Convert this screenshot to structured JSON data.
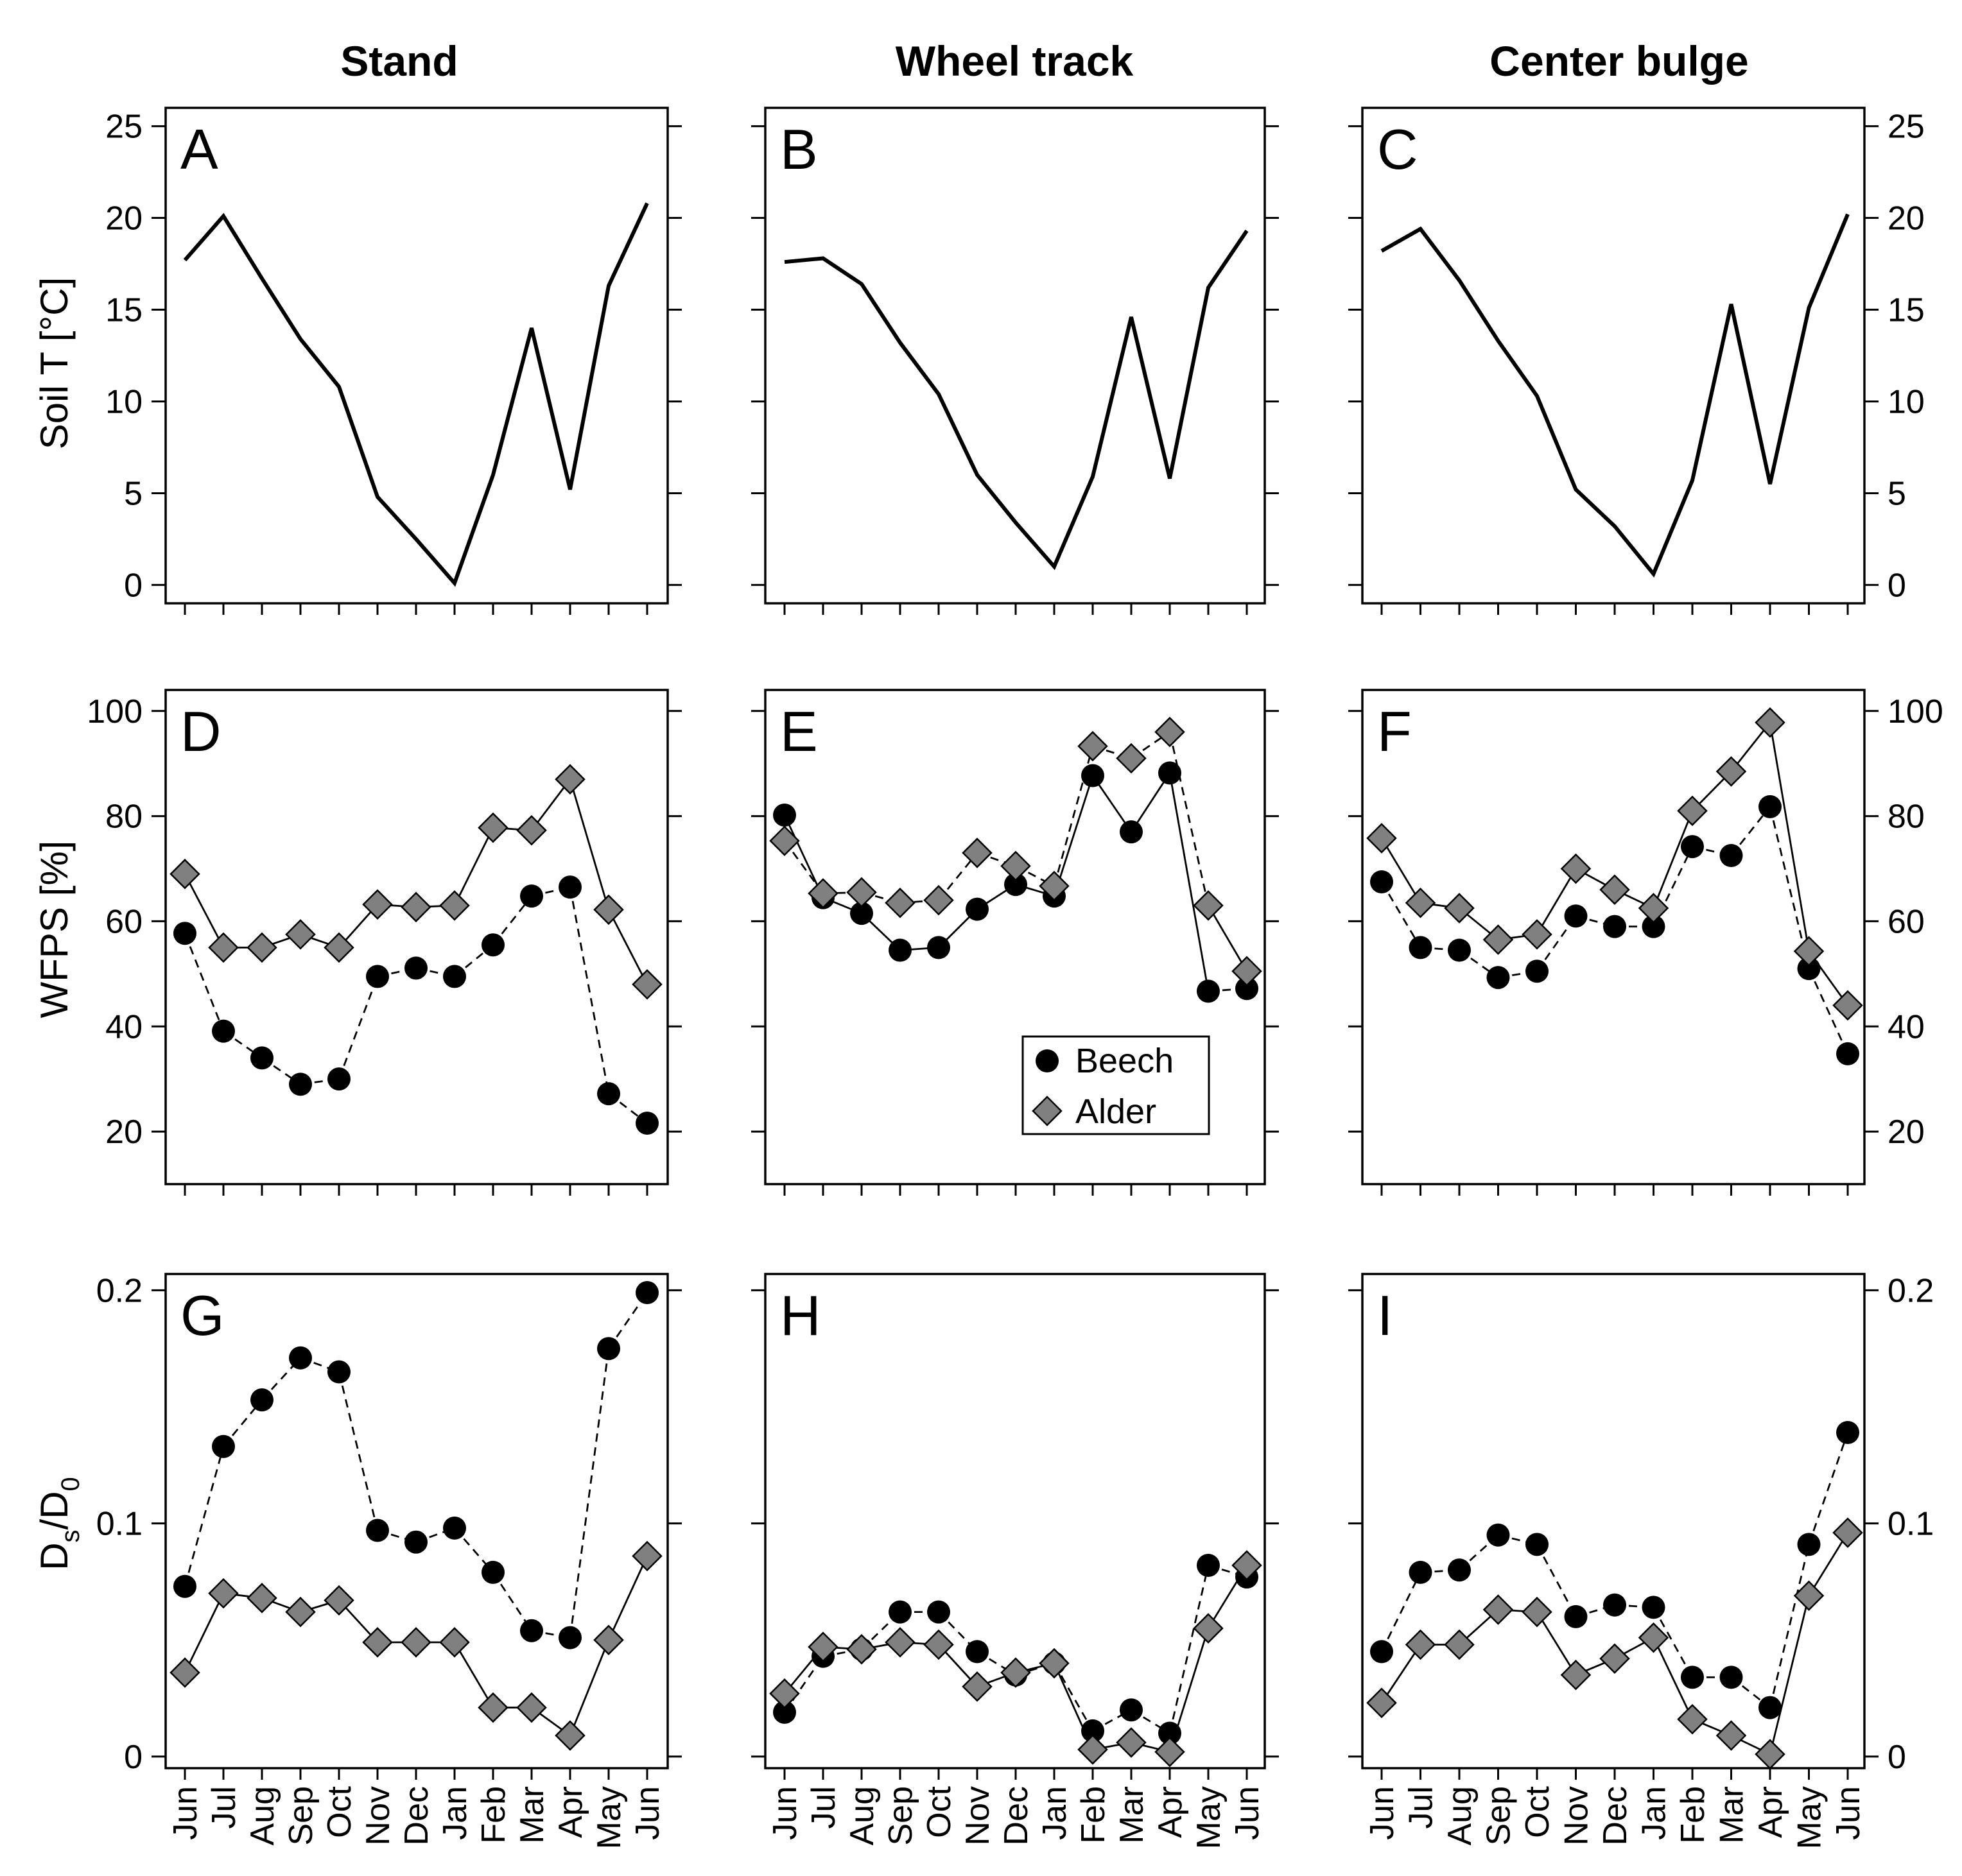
{
  "figure": {
    "column_titles": [
      "Stand",
      "Wheel track",
      "Center bulge"
    ],
    "months": [
      "Jun",
      "Jul",
      "Aug",
      "Sep",
      "Oct",
      "Nov",
      "Dec",
      "Jan",
      "Feb",
      "Mar",
      "Apr",
      "May",
      "Jun"
    ],
    "legend": {
      "beech": "Beech",
      "alder": "Alder"
    },
    "colors": {
      "line": "#000000",
      "beech_marker": "#000000",
      "alder_marker": "#808080",
      "axis": "#000000"
    }
  },
  "rows": [
    {
      "ylabel": "Soil T [°C]",
      "ylabel_main": "Soil T [°C]",
      "ylim": [
        -1,
        26
      ],
      "ticks": [
        0,
        5,
        10,
        15,
        20,
        25
      ],
      "tick_labels": [
        "0",
        "5",
        "10",
        "15",
        "20",
        "25"
      ]
    },
    {
      "ylabel": "WFPS [%]",
      "ylabel_main": "WFPS [%]",
      "ylim": [
        10,
        104
      ],
      "ticks": [
        20,
        40,
        60,
        80,
        100
      ],
      "tick_labels": [
        "20",
        "40",
        "60",
        "80",
        "100"
      ]
    },
    {
      "ylabel": "Ds/D0",
      "ylabel_main": "D",
      "ylabel_sub_s": "s",
      "ylabel_slash": "/D",
      "ylabel_sub_0": "0",
      "ylim": [
        -0.005,
        0.207
      ],
      "ticks": [
        0,
        0.1,
        0.2
      ],
      "tick_labels": [
        "0",
        "0.1",
        "0.2"
      ]
    }
  ],
  "chart_data": [
    {
      "panel": "A",
      "type": "line",
      "column": "Stand",
      "ylabel": "Soil T [°C]",
      "ylim": [
        -1,
        26
      ],
      "categories": [
        "Jun",
        "Jul",
        "Aug",
        "Sep",
        "Oct",
        "Nov",
        "Dec",
        "Jan",
        "Feb",
        "Mar",
        "Apr",
        "May",
        "Jun"
      ],
      "series": [
        {
          "name": "Soil T",
          "values": [
            17.7,
            20.1,
            16.7,
            13.4,
            10.8,
            4.8,
            2.5,
            0.1,
            6.0,
            14.0,
            5.2,
            16.3,
            20.8
          ]
        }
      ]
    },
    {
      "panel": "B",
      "type": "line",
      "column": "Wheel track",
      "ylabel": "Soil T [°C]",
      "ylim": [
        -1,
        26
      ],
      "categories": [
        "Jun",
        "Jul",
        "Aug",
        "Sep",
        "Oct",
        "Nov",
        "Dec",
        "Jan",
        "Feb",
        "Mar",
        "Apr",
        "May",
        "Jun"
      ],
      "series": [
        {
          "name": "Soil T",
          "values": [
            17.6,
            17.8,
            16.4,
            13.2,
            10.4,
            6.0,
            3.4,
            1.0,
            5.9,
            14.6,
            5.8,
            16.2,
            19.3
          ]
        }
      ]
    },
    {
      "panel": "C",
      "type": "line",
      "column": "Center bulge",
      "ylabel": "Soil T [°C]",
      "ylim": [
        -1,
        26
      ],
      "categories": [
        "Jun",
        "Jul",
        "Aug",
        "Sep",
        "Oct",
        "Nov",
        "Dec",
        "Jan",
        "Feb",
        "Mar",
        "Apr",
        "May",
        "Jun"
      ],
      "series": [
        {
          "name": "Soil T",
          "values": [
            18.2,
            19.4,
            16.6,
            13.3,
            10.3,
            5.2,
            3.2,
            0.6,
            5.7,
            15.3,
            5.5,
            15.1,
            20.2
          ]
        }
      ]
    },
    {
      "panel": "D",
      "type": "line",
      "column": "Stand",
      "ylabel": "WFPS [%]",
      "ylim": [
        10,
        104
      ],
      "categories": [
        "Jun",
        "Jul",
        "Aug",
        "Sep",
        "Oct",
        "Nov",
        "Dec",
        "Jan",
        "Feb",
        "Mar",
        "Apr",
        "May",
        "Jun"
      ],
      "series": [
        {
          "name": "Beech",
          "values": [
            57.7,
            39.1,
            34.0,
            29.0,
            30.0,
            49.5,
            51.1,
            49.5,
            55.5,
            64.8,
            66.5,
            27.2,
            21.6
          ],
          "marker": "circle",
          "dash": [
            true,
            true,
            true,
            true,
            true,
            true,
            true,
            true,
            true,
            true,
            true,
            true
          ]
        },
        {
          "name": "Alder",
          "values": [
            69.0,
            55.0,
            55.0,
            57.5,
            55.0,
            63.2,
            62.7,
            63.0,
            77.8,
            77.3,
            87.0,
            62.2,
            48.0
          ],
          "marker": "diamond",
          "dash": [
            false,
            false,
            false,
            false,
            false,
            false,
            false,
            false,
            false,
            false,
            false,
            false
          ]
        }
      ]
    },
    {
      "panel": "E",
      "type": "line",
      "column": "Wheel track",
      "ylabel": "WFPS [%]",
      "ylim": [
        10,
        104
      ],
      "categories": [
        "Jun",
        "Jul",
        "Aug",
        "Sep",
        "Oct",
        "Nov",
        "Dec",
        "Jan",
        "Feb",
        "Mar",
        "Apr",
        "May",
        "Jun"
      ],
      "series": [
        {
          "name": "Beech",
          "values": [
            80.2,
            64.5,
            61.5,
            54.5,
            55.0,
            62.3,
            67.0,
            64.8,
            87.7,
            77.0,
            88.2,
            46.7,
            47.2
          ],
          "marker": "circle",
          "dash": [
            false,
            false,
            false,
            false,
            false,
            false,
            false,
            false,
            false,
            false,
            false,
            true
          ]
        },
        {
          "name": "Alder",
          "values": [
            75.3,
            65.3,
            65.5,
            63.5,
            64.0,
            73.0,
            70.5,
            66.7,
            93.3,
            91.0,
            96.0,
            63.0,
            50.5
          ],
          "marker": "diamond",
          "dash": [
            true,
            true,
            true,
            true,
            true,
            true,
            true,
            true,
            true,
            true,
            true,
            false
          ]
        }
      ]
    },
    {
      "panel": "F",
      "type": "line",
      "column": "Center bulge",
      "ylabel": "WFPS [%]",
      "ylim": [
        10,
        104
      ],
      "categories": [
        "Jun",
        "Jul",
        "Aug",
        "Sep",
        "Oct",
        "Nov",
        "Dec",
        "Jan",
        "Feb",
        "Mar",
        "Apr",
        "May",
        "Jun"
      ],
      "series": [
        {
          "name": "Beech",
          "values": [
            67.5,
            55.0,
            54.5,
            49.3,
            50.5,
            61.0,
            59.0,
            59.0,
            74.2,
            72.5,
            81.8,
            51.0,
            34.8
          ],
          "marker": "circle",
          "dash": [
            true,
            true,
            true,
            true,
            true,
            true,
            true,
            true,
            true,
            true,
            true,
            true
          ]
        },
        {
          "name": "Alder",
          "values": [
            75.8,
            63.5,
            62.5,
            56.5,
            57.5,
            70.0,
            66.0,
            62.5,
            81.0,
            88.5,
            97.8,
            54.3,
            44.0
          ],
          "marker": "diamond",
          "dash": [
            false,
            false,
            false,
            false,
            false,
            false,
            false,
            false,
            false,
            false,
            false,
            false
          ]
        }
      ]
    },
    {
      "panel": "G",
      "type": "line",
      "column": "Stand",
      "ylabel": "Ds/D0",
      "ylim": [
        -0.005,
        0.207
      ],
      "categories": [
        "Jun",
        "Jul",
        "Aug",
        "Sep",
        "Oct",
        "Nov",
        "Dec",
        "Jan",
        "Feb",
        "Mar",
        "Apr",
        "May",
        "Jun"
      ],
      "series": [
        {
          "name": "Beech",
          "values": [
            0.073,
            0.133,
            0.153,
            0.171,
            0.165,
            0.097,
            0.092,
            0.098,
            0.079,
            0.054,
            0.051,
            0.175,
            0.199
          ],
          "marker": "circle",
          "dash": [
            true,
            true,
            true,
            true,
            true,
            true,
            true,
            true,
            true,
            true,
            true,
            true
          ]
        },
        {
          "name": "Alder",
          "values": [
            0.036,
            0.07,
            0.068,
            0.062,
            0.067,
            0.049,
            0.049,
            0.049,
            0.021,
            0.021,
            0.009,
            0.05,
            0.086
          ],
          "marker": "diamond",
          "dash": [
            false,
            false,
            false,
            false,
            false,
            false,
            false,
            false,
            false,
            false,
            false,
            false
          ]
        }
      ]
    },
    {
      "panel": "H",
      "type": "line",
      "column": "Wheel track",
      "ylabel": "Ds/D0",
      "ylim": [
        -0.005,
        0.207
      ],
      "categories": [
        "Jun",
        "Jul",
        "Aug",
        "Sep",
        "Oct",
        "Nov",
        "Dec",
        "Jan",
        "Feb",
        "Mar",
        "Apr",
        "May",
        "Jun"
      ],
      "series": [
        {
          "name": "Beech",
          "values": [
            0.019,
            0.043,
            0.046,
            0.062,
            0.062,
            0.045,
            0.035,
            0.04,
            0.011,
            0.02,
            0.01,
            0.082,
            0.077
          ],
          "marker": "circle",
          "dash": [
            true,
            true,
            true,
            true,
            true,
            true,
            true,
            true,
            true,
            true,
            true,
            true
          ]
        },
        {
          "name": "Alder",
          "values": [
            0.027,
            0.047,
            0.046,
            0.049,
            0.048,
            0.03,
            0.036,
            0.04,
            0.003,
            0.006,
            0.002,
            0.055,
            0.082
          ],
          "marker": "diamond",
          "dash": [
            false,
            false,
            false,
            false,
            false,
            false,
            false,
            false,
            false,
            false,
            false,
            false
          ]
        }
      ]
    },
    {
      "panel": "I",
      "type": "line",
      "column": "Center bulge",
      "ylabel": "Ds/D0",
      "ylim": [
        -0.005,
        0.207
      ],
      "categories": [
        "Jun",
        "Jul",
        "Aug",
        "Sep",
        "Oct",
        "Nov",
        "Dec",
        "Jan",
        "Feb",
        "Mar",
        "Apr",
        "May",
        "Jun"
      ],
      "series": [
        {
          "name": "Beech",
          "values": [
            0.045,
            0.079,
            0.08,
            0.095,
            0.091,
            0.06,
            0.065,
            0.064,
            0.034,
            0.034,
            0.021,
            0.091,
            0.139
          ],
          "marker": "circle",
          "dash": [
            true,
            true,
            true,
            true,
            true,
            true,
            true,
            true,
            true,
            true,
            true,
            true
          ]
        },
        {
          "name": "Alder",
          "values": [
            0.023,
            0.048,
            0.048,
            0.063,
            0.062,
            0.035,
            0.042,
            0.051,
            0.016,
            0.009,
            0.001,
            0.069,
            0.096
          ],
          "marker": "diamond",
          "dash": [
            false,
            false,
            false,
            false,
            false,
            false,
            false,
            false,
            false,
            false,
            false,
            false
          ]
        }
      ]
    }
  ]
}
